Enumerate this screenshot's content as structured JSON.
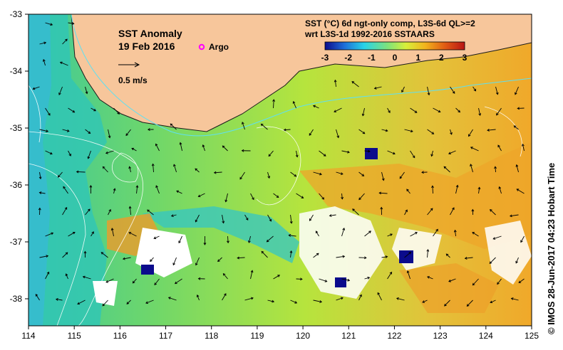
{
  "map": {
    "title": "SST Anomaly",
    "date": "19 Feb 2016",
    "argo_label": "Argo",
    "vector_scale_label": "0.5 m/s",
    "colorbar_title_line1": "SST (°C) 6d ngt-only comp, L3S-6d QL>=2",
    "colorbar_title_line2": "wrt L3S-1d 1992-2016 SSTAARS",
    "colorbar_ticks": [
      "-3",
      "-2",
      "-1",
      "0",
      "1",
      "2",
      "3"
    ],
    "x_ticks": [
      "114",
      "115",
      "116",
      "117",
      "118",
      "119",
      "120",
      "121",
      "122",
      "123",
      "124",
      "125"
    ],
    "y_ticks": [
      "-33",
      "-34",
      "-35",
      "-36",
      "-37",
      "-38"
    ],
    "credit": "© IMOS 28-Jun-2017 04:23 Hobart Time",
    "colors": {
      "land": "#f7c69b",
      "argo": "#ff00ff",
      "cb_stops": [
        "#0b0b8c",
        "#1f6fd9",
        "#27d3e8",
        "#7fe37a",
        "#d8f03a",
        "#f2b21c",
        "#e05a14",
        "#b81414"
      ]
    }
  }
}
